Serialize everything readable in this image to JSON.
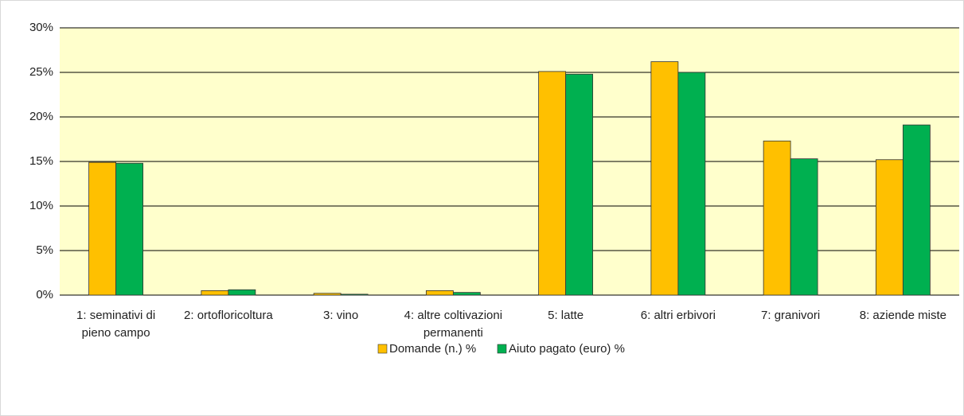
{
  "chart_data": {
    "type": "bar",
    "categories": [
      "1: seminativi di pieno campo",
      "2: ortofloricoltura",
      "3: vino",
      "4: altre coltivazioni permanenti",
      "5: latte",
      "6: altri erbivori",
      "7: granivori",
      "8: aziende miste"
    ],
    "series": [
      {
        "name": "Domande (n.) %",
        "color": "#ffc000",
        "values": [
          14.9,
          0.5,
          0.2,
          0.5,
          25.1,
          26.2,
          17.3,
          15.2
        ]
      },
      {
        "name": "Aiuto pagato (euro) %",
        "color": "#00b050",
        "values": [
          14.8,
          0.6,
          0.1,
          0.3,
          24.8,
          25.0,
          15.3,
          19.1
        ]
      }
    ],
    "ylim": [
      0,
      30
    ],
    "yticks": [
      {
        "value": 0,
        "label": "0%"
      },
      {
        "value": 5,
        "label": "5%"
      },
      {
        "value": 10,
        "label": "10%"
      },
      {
        "value": 15,
        "label": "15%"
      },
      {
        "value": 20,
        "label": "20%"
      },
      {
        "value": 25,
        "label": "25%"
      },
      {
        "value": 30,
        "label": "30%"
      }
    ],
    "grid": true,
    "legend": "bottom",
    "plot_background": "#ffffcc"
  }
}
